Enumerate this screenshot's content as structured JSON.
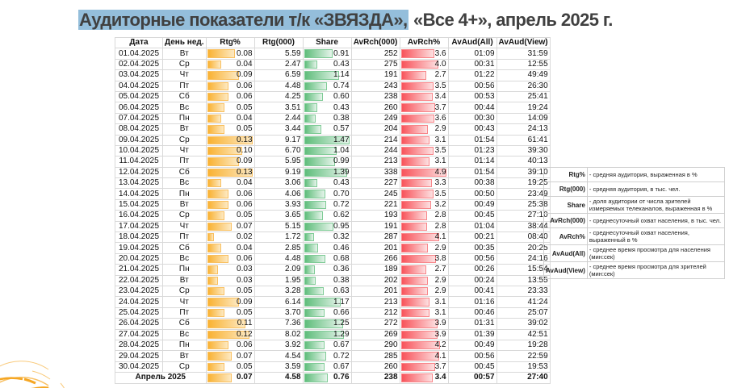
{
  "title": {
    "highlighted": "Аудиторные показатели т/к «ЗВЯЗДА»,",
    "rest": " «Все 4+», апрель 2025 г."
  },
  "table": {
    "headers": [
      "Дата",
      "День нед.",
      "Rtg%",
      "Rtg(000)",
      "Share",
      "AvRch(000)",
      "AvRch%",
      "AvAud(All)",
      "AvAud(View)"
    ],
    "bar_colors": {
      "rtg_pct": "#f9b233",
      "share": "#5fbd7b",
      "avrch_pct": "#f8535a"
    },
    "rows": [
      [
        "01.04.2025",
        "Вт",
        "0.08",
        "5.59",
        "0.91",
        "252",
        "3.6",
        "01:09",
        "31:59"
      ],
      [
        "02.04.2025",
        "Ср",
        "0.04",
        "2.47",
        "0.43",
        "275",
        "4.0",
        "00:31",
        "12:55"
      ],
      [
        "03.04.2025",
        "Чт",
        "0.09",
        "6.59",
        "1.14",
        "191",
        "2.7",
        "01:22",
        "49:49"
      ],
      [
        "04.04.2025",
        "Пт",
        "0.06",
        "4.48",
        "0.74",
        "243",
        "3.5",
        "00:56",
        "26:30"
      ],
      [
        "05.04.2025",
        "Сб",
        "0.06",
        "4.25",
        "0.60",
        "238",
        "3.4",
        "00:53",
        "25:41"
      ],
      [
        "06.04.2025",
        "Вс",
        "0.05",
        "3.51",
        "0.43",
        "260",
        "3.7",
        "00:44",
        "19:24"
      ],
      [
        "07.04.2025",
        "Пн",
        "0.04",
        "2.44",
        "0.38",
        "249",
        "3.6",
        "00:30",
        "14:09"
      ],
      [
        "08.04.2025",
        "Вт",
        "0.05",
        "3.44",
        "0.57",
        "204",
        "2.9",
        "00:43",
        "24:13"
      ],
      [
        "09.04.2025",
        "Ср",
        "0.13",
        "9.17",
        "1.47",
        "214",
        "3.1",
        "01:54",
        "61:41"
      ],
      [
        "10.04.2025",
        "Чт",
        "0.10",
        "6.70",
        "1.04",
        "244",
        "3.5",
        "01:23",
        "39:30"
      ],
      [
        "11.04.2025",
        "Пт",
        "0.09",
        "5.95",
        "0.99",
        "213",
        "3.1",
        "01:14",
        "40:13"
      ],
      [
        "12.04.2025",
        "Сб",
        "0.13",
        "9.19",
        "1.39",
        "338",
        "4.9",
        "01:54",
        "39:10"
      ],
      [
        "13.04.2025",
        "Вс",
        "0.04",
        "3.06",
        "0.43",
        "227",
        "3.3",
        "00:38",
        "19:25"
      ],
      [
        "14.04.2025",
        "Пн",
        "0.06",
        "4.06",
        "0.70",
        "245",
        "3.5",
        "00:50",
        "23:49"
      ],
      [
        "15.04.2025",
        "Вт",
        "0.06",
        "3.93",
        "0.72",
        "221",
        "3.2",
        "00:49",
        "25:38"
      ],
      [
        "16.04.2025",
        "Ср",
        "0.05",
        "3.65",
        "0.62",
        "193",
        "2.8",
        "00:45",
        "27:10"
      ],
      [
        "17.04.2025",
        "Чт",
        "0.07",
        "5.15",
        "0.95",
        "191",
        "2.8",
        "01:04",
        "38:44"
      ],
      [
        "18.04.2025",
        "Пт",
        "0.02",
        "1.72",
        "0.32",
        "287",
        "4.1",
        "00:21",
        "08:40"
      ],
      [
        "19.04.2025",
        "Сб",
        "0.04",
        "2.85",
        "0.46",
        "201",
        "2.9",
        "00:35",
        "20:25"
      ],
      [
        "20.04.2025",
        "Вс",
        "0.06",
        "4.48",
        "0.68",
        "266",
        "3.8",
        "00:56",
        "24:16"
      ],
      [
        "21.04.2025",
        "Пн",
        "0.03",
        "2.09",
        "0.36",
        "189",
        "2.7",
        "00:26",
        "15:54"
      ],
      [
        "22.04.2025",
        "Вт",
        "0.03",
        "1.95",
        "0.38",
        "202",
        "2.9",
        "00:24",
        "13:55"
      ],
      [
        "23.04.2025",
        "Ср",
        "0.05",
        "3.28",
        "0.63",
        "201",
        "2.9",
        "00:41",
        "23:33"
      ],
      [
        "24.04.2025",
        "Чт",
        "0.09",
        "6.14",
        "1.17",
        "213",
        "3.1",
        "01:16",
        "41:24"
      ],
      [
        "25.04.2025",
        "Пт",
        "0.05",
        "3.70",
        "0.66",
        "212",
        "3.1",
        "00:46",
        "25:07"
      ],
      [
        "26.04.2025",
        "Сб",
        "0.11",
        "7.36",
        "1.25",
        "272",
        "3.9",
        "01:31",
        "39:02"
      ],
      [
        "27.04.2025",
        "Вс",
        "0.12",
        "8.02",
        "1.29",
        "269",
        "3.9",
        "01:39",
        "42:51"
      ],
      [
        "28.04.2025",
        "Пн",
        "0.06",
        "3.92",
        "0.67",
        "290",
        "4.2",
        "00:49",
        "19:28"
      ],
      [
        "29.04.2025",
        "Вт",
        "0.07",
        "4.54",
        "0.72",
        "285",
        "4.1",
        "00:56",
        "22:59"
      ],
      [
        "30.04.2025",
        "Ср",
        "0.05",
        "3.59",
        "0.67",
        "260",
        "3.7",
        "00:45",
        "19:53"
      ]
    ],
    "total": [
      "Апрель 2025",
      "0.07",
      "4.58",
      "0.76",
      "238",
      "3.4",
      "00:57",
      "27:40"
    ]
  },
  "legend": [
    {
      "key": "Rtg%",
      "desc": "- средняя аудитория, выраженная в %"
    },
    {
      "key": "Rtg(000)",
      "desc": "- средняя аудитория, в тыс. чел."
    },
    {
      "key": "Share",
      "desc": "- доля аудитории от числа зрителей измеряемых телеканалов, выраженная в %"
    },
    {
      "key": "AvRch(000)",
      "desc": "- среднесуточный охват населения, в тыс. чел."
    },
    {
      "key": "AvRch%",
      "desc": "- среднесуточный охват населения, выраженный в %"
    },
    {
      "key": "AvAud(All)",
      "desc": "- среднее время просмотра для населения (мин:сек)"
    },
    {
      "key": "AvAud(View)",
      "desc": "- среднее время просмотра для зрителей (мин:сек)"
    }
  ]
}
